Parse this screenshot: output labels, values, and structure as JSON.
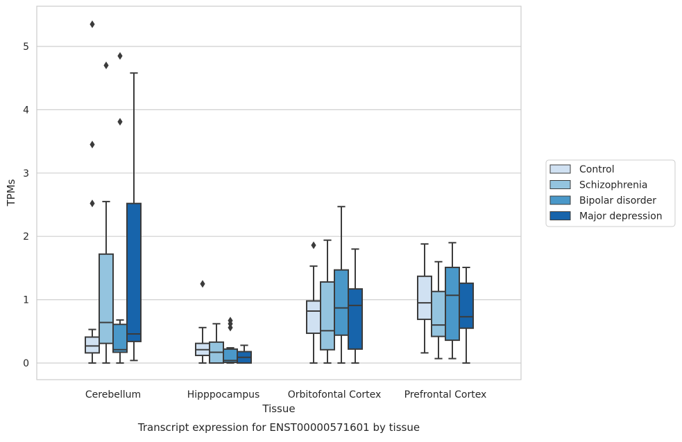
{
  "caption": "Transcript expression for ENST00000571601 by tissue",
  "chart_data": {
    "type": "box",
    "xlabel": "Tissue",
    "ylabel": "TPMs",
    "ylim": [
      -0.25,
      5.65
    ],
    "yticks": [
      0,
      1,
      2,
      3,
      4,
      5
    ],
    "grid": "horizontal",
    "legend_position": "outside-right",
    "categories": [
      "Cerebellum",
      "Hipppocampus",
      "Orbitofontal Cortex",
      "Prefrontal Cortex"
    ],
    "colors": {
      "Control": "#d0e1f2",
      "Schizophrenia": "#94c4df",
      "Bipolar disorder": "#4a98c9",
      "Major depression": "#1764ab",
      "edge": "#3b3b3b",
      "grid": "#cfcfcf",
      "frame": "#cccccc"
    },
    "series": [
      {
        "name": "Control",
        "boxes": [
          {
            "whislo": 0.0,
            "q1": 0.16,
            "med": 0.27,
            "q3": 0.41,
            "whishi": 0.53,
            "fliers": [
              2.52,
              3.45,
              5.35
            ]
          },
          {
            "whislo": 0.0,
            "q1": 0.12,
            "med": 0.21,
            "q3": 0.31,
            "whishi": 0.56,
            "fliers": [
              1.25
            ]
          },
          {
            "whislo": 0.0,
            "q1": 0.47,
            "med": 0.82,
            "q3": 0.98,
            "whishi": 1.53,
            "fliers": [
              1.86
            ]
          },
          {
            "whislo": 0.16,
            "q1": 0.69,
            "med": 0.95,
            "q3": 1.37,
            "whishi": 1.88,
            "fliers": []
          }
        ]
      },
      {
        "name": "Schizophrenia",
        "boxes": [
          {
            "whislo": 0.0,
            "q1": 0.31,
            "med": 0.64,
            "q3": 1.72,
            "whishi": 2.55,
            "fliers": [
              4.7
            ]
          },
          {
            "whislo": 0.0,
            "q1": 0.0,
            "med": 0.17,
            "q3": 0.33,
            "whishi": 0.62,
            "fliers": []
          },
          {
            "whislo": 0.0,
            "q1": 0.21,
            "med": 0.51,
            "q3": 1.28,
            "whishi": 1.94,
            "fliers": []
          },
          {
            "whislo": 0.07,
            "q1": 0.42,
            "med": 0.6,
            "q3": 1.13,
            "whishi": 1.6,
            "fliers": []
          }
        ]
      },
      {
        "name": "Bipolar disorder",
        "boxes": [
          {
            "whislo": 0.0,
            "q1": 0.17,
            "med": 0.21,
            "q3": 0.61,
            "whishi": 0.68,
            "fliers": [
              3.81,
              4.85
            ]
          },
          {
            "whislo": 0.0,
            "q1": 0.01,
            "med": 0.04,
            "q3": 0.22,
            "whishi": 0.24,
            "fliers": [
              0.56,
              0.62,
              0.67
            ]
          },
          {
            "whislo": 0.0,
            "q1": 0.44,
            "med": 0.87,
            "q3": 1.47,
            "whishi": 2.47,
            "fliers": []
          },
          {
            "whislo": 0.07,
            "q1": 0.36,
            "med": 1.07,
            "q3": 1.51,
            "whishi": 1.9,
            "fliers": []
          }
        ]
      },
      {
        "name": "Major depression",
        "boxes": [
          {
            "whislo": 0.04,
            "q1": 0.34,
            "med": 0.46,
            "q3": 2.52,
            "whishi": 4.58,
            "fliers": []
          },
          {
            "whislo": 0.0,
            "q1": 0.0,
            "med": 0.09,
            "q3": 0.18,
            "whishi": 0.28,
            "fliers": []
          },
          {
            "whislo": 0.0,
            "q1": 0.22,
            "med": 0.91,
            "q3": 1.17,
            "whishi": 1.8,
            "fliers": []
          },
          {
            "whislo": 0.0,
            "q1": 0.55,
            "med": 0.73,
            "q3": 1.26,
            "whishi": 1.51,
            "fliers": []
          }
        ]
      }
    ]
  }
}
